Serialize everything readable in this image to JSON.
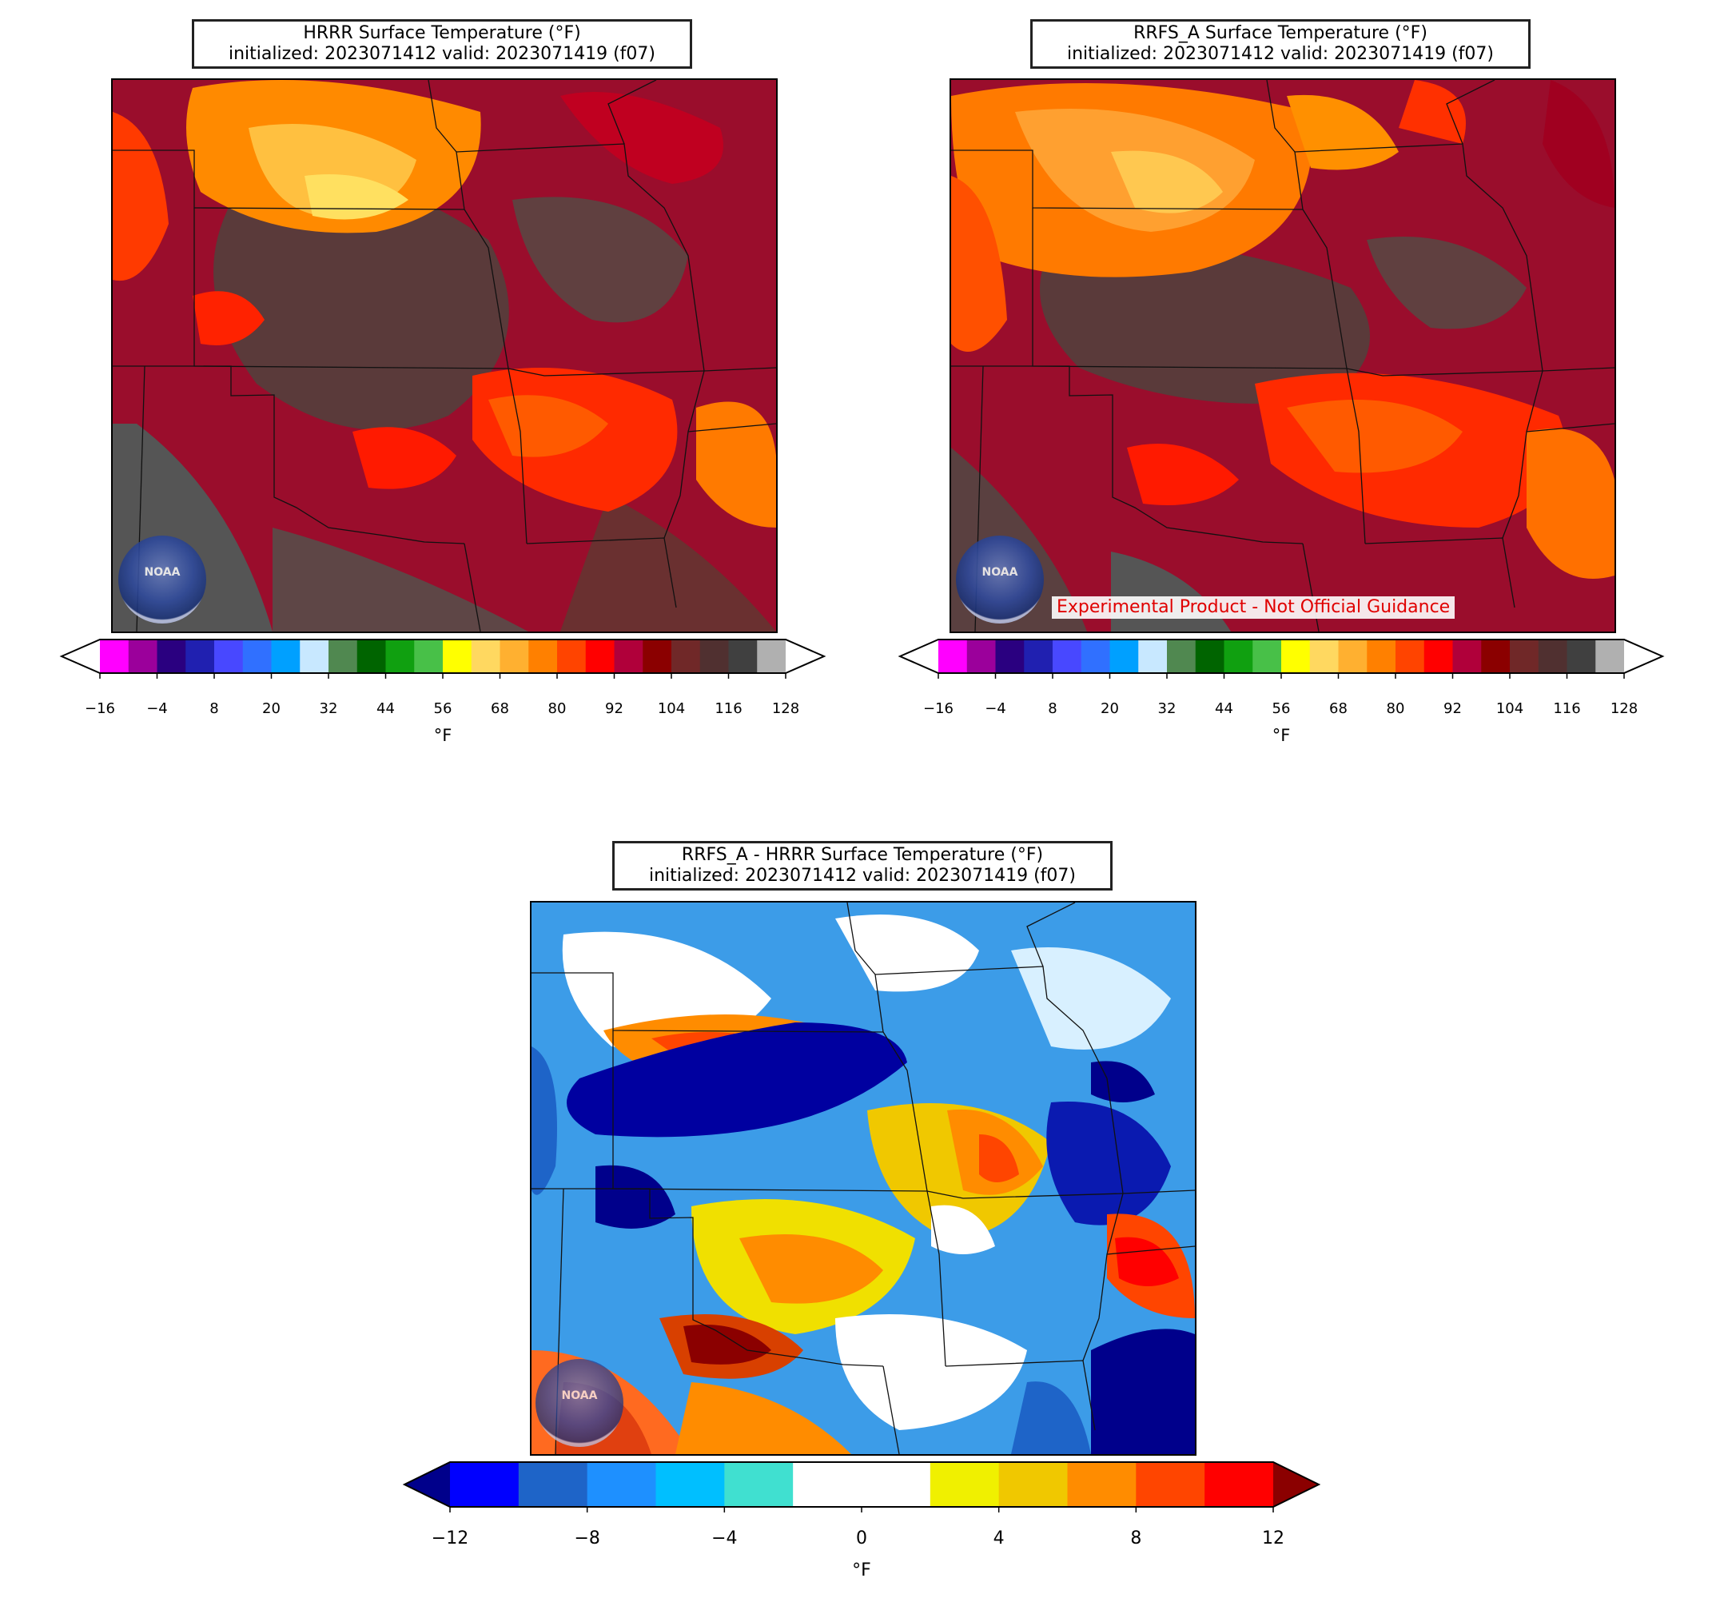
{
  "panels": [
    {
      "title": "HRRR Surface Temperature (°F)",
      "subtitle": "initialized: 2023071412 valid: 2023071419 (f07)"
    },
    {
      "title": "RRFS_A Surface Temperature (°F)",
      "subtitle": "initialized: 2023071412 valid: 2023071419 (f07)",
      "warning": "Experimental Product - Not Official Guidance"
    },
    {
      "title": "RRFS_A - HRRR Surface Temperature (°F)",
      "subtitle": "initialized: 2023071412 valid: 2023071419 (f07)"
    }
  ],
  "logo_text": "NOAA",
  "temp_colorbar": {
    "unit": "°F",
    "ticks": [
      "−16",
      "−4",
      "8",
      "20",
      "32",
      "44",
      "56",
      "68",
      "80",
      "92",
      "104",
      "116",
      "128"
    ],
    "colors": [
      "#ff00ff",
      "#9b009b",
      "#2a0080",
      "#2020b0",
      "#4848ff",
      "#3070ff",
      "#00a0ff",
      "#c8e8ff",
      "#508850",
      "#006400",
      "#10a010",
      "#48c048",
      "#ffff00",
      "#ffd860",
      "#ffb030",
      "#ff8000",
      "#ff4400",
      "#ff0000",
      "#b0003a",
      "#8b0000",
      "#702828",
      "#503030",
      "#404040",
      "#b0b0b0"
    ],
    "under": "#ffffff",
    "over": "#ffffff"
  },
  "diff_colorbar": {
    "unit": "°F",
    "ticks": [
      "−12",
      "−8",
      "−4",
      "0",
      "4",
      "8",
      "12"
    ],
    "colors": [
      "#0000ff",
      "#1e64c8",
      "#1e90ff",
      "#00bfff",
      "#40e0d0",
      "#ffffff",
      "#ffffff",
      "#f0f000",
      "#f0c800",
      "#ff8c00",
      "#ff4500",
      "#ff0000"
    ],
    "under": "#00008b",
    "over": "#8b0000"
  }
}
